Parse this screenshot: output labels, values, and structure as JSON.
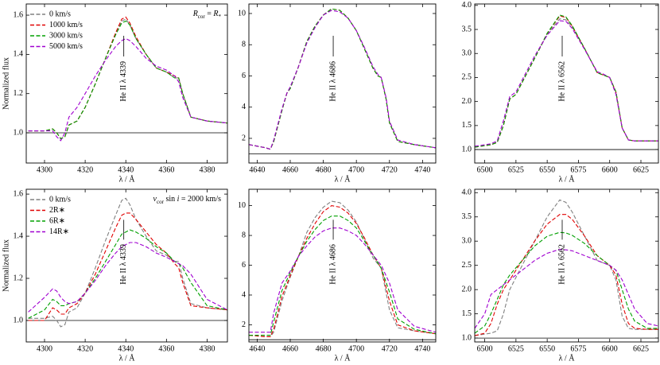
{
  "chart_data": [
    {
      "type": "line",
      "xlabel": "λ / Å",
      "ylabel": "Normalized flux",
      "xlim": [
        4291,
        4390
      ],
      "ylim": [
        0.846,
        1.657
      ],
      "xticks": [
        4300,
        4320,
        4340,
        4360,
        4380
      ],
      "yticks": [
        {
          "value": 1,
          "label": "1.0"
        },
        1.2,
        1.4,
        1.6
      ],
      "hline": 1,
      "legend": "upper left",
      "annotation": {
        "parts": [
          {
            "text": "R",
            "italic": true
          },
          {
            "text": "cor",
            "sub": true
          },
          {
            "text": " = "
          },
          {
            "text": "R",
            "italic": true
          },
          {
            "text": "*",
            "sub": true
          }
        ]
      },
      "line_label": {
        "text": "He II λ 4339",
        "x": 4339
      },
      "x": [
        4292,
        4300,
        4304,
        4306,
        4308,
        4310,
        4312,
        4316,
        4320,
        4325,
        4330,
        4335,
        4338,
        4340,
        4342,
        4345,
        4350,
        4355,
        4360,
        4364,
        4366,
        4368,
        4372,
        4380,
        4390
      ],
      "series": [
        {
          "name": "0 km/s",
          "color": "#808080",
          "values": [
            1.01,
            1.01,
            1.02,
            1.0,
            0.97,
            0.98,
            1.04,
            1.06,
            1.13,
            1.25,
            1.38,
            1.5,
            1.57,
            1.58,
            1.55,
            1.48,
            1.4,
            1.33,
            1.31,
            1.28,
            1.28,
            1.2,
            1.08,
            1.06,
            1.05
          ]
        },
        {
          "name": "1000 km/s",
          "color": "#e00000",
          "values": [
            1.01,
            1.01,
            1.02,
            1.0,
            0.97,
            0.98,
            1.04,
            1.06,
            1.13,
            1.25,
            1.38,
            1.51,
            1.58,
            1.59,
            1.56,
            1.49,
            1.4,
            1.33,
            1.31,
            1.29,
            1.28,
            1.2,
            1.08,
            1.06,
            1.05
          ]
        },
        {
          "name": "3000 km/s",
          "color": "#00a000",
          "values": [
            1.01,
            1.01,
            1.02,
            1.0,
            0.97,
            0.98,
            1.04,
            1.06,
            1.13,
            1.25,
            1.38,
            1.5,
            1.56,
            1.57,
            1.55,
            1.48,
            1.4,
            1.33,
            1.31,
            1.28,
            1.28,
            1.2,
            1.08,
            1.06,
            1.05
          ]
        },
        {
          "name": "5000 km/s",
          "color": "#a000d0",
          "values": [
            1.01,
            1.01,
            1.01,
            0.98,
            0.96,
            1.0,
            1.08,
            1.13,
            1.2,
            1.29,
            1.37,
            1.44,
            1.47,
            1.48,
            1.47,
            1.44,
            1.38,
            1.34,
            1.32,
            1.29,
            1.26,
            1.18,
            1.08,
            1.06,
            1.05
          ]
        }
      ]
    },
    {
      "type": "line",
      "xlabel": "λ / Å",
      "xlim": [
        4635,
        4748
      ],
      "ylim": [
        0.42,
        10.61
      ],
      "xticks": [
        4640,
        4660,
        4680,
        4700,
        4720,
        4740
      ],
      "yticks": [
        2,
        4,
        6,
        8,
        10
      ],
      "hline": 1,
      "line_label": {
        "text": "He II λ 4686",
        "x": 4686
      },
      "x": [
        4635,
        4645,
        4648,
        4650,
        4655,
        4658,
        4660,
        4665,
        4670,
        4675,
        4680,
        4685,
        4690,
        4695,
        4700,
        4705,
        4710,
        4713,
        4715,
        4718,
        4720,
        4725,
        4735,
        4748
      ],
      "series": [
        {
          "name": "0 km/s",
          "color": "#808080",
          "values": [
            1.6,
            1.4,
            1.3,
            1.8,
            3.8,
            4.9,
            5.2,
            6.6,
            8.2,
            9.2,
            9.9,
            10.3,
            10.2,
            9.7,
            8.9,
            7.7,
            6.5,
            6.0,
            5.9,
            4.5,
            3.0,
            1.8,
            1.6,
            1.4
          ]
        },
        {
          "name": "1000 km/s",
          "color": "#e00000",
          "values": [
            1.6,
            1.4,
            1.3,
            1.8,
            3.8,
            4.9,
            5.2,
            6.6,
            8.2,
            9.2,
            9.9,
            10.3,
            10.2,
            9.7,
            8.9,
            7.7,
            6.5,
            6.0,
            5.9,
            4.5,
            3.0,
            1.8,
            1.6,
            1.4
          ]
        },
        {
          "name": "3000 km/s",
          "color": "#00a000",
          "values": [
            1.6,
            1.4,
            1.3,
            1.8,
            3.8,
            4.9,
            5.2,
            6.6,
            8.2,
            9.2,
            9.9,
            10.3,
            10.2,
            9.7,
            8.9,
            7.7,
            6.5,
            6.0,
            5.9,
            4.5,
            3.0,
            1.8,
            1.6,
            1.4
          ]
        },
        {
          "name": "5000 km/s",
          "color": "#a000d0",
          "values": [
            1.6,
            1.4,
            1.3,
            1.9,
            3.9,
            4.9,
            5.3,
            6.6,
            8.1,
            9.1,
            9.9,
            10.2,
            10.1,
            9.7,
            8.9,
            7.8,
            6.6,
            6.1,
            5.9,
            4.6,
            3.1,
            1.9,
            1.6,
            1.4
          ]
        }
      ]
    },
    {
      "type": "line",
      "xlabel": "λ / Å",
      "xlim": [
        6492,
        6639
      ],
      "ylim": [
        0.72,
        4.03
      ],
      "xticks": [
        6500,
        6525,
        6550,
        6575,
        6600,
        6625
      ],
      "yticks": [
        {
          "value": 1,
          "label": "1.0"
        },
        1.5,
        {
          "value": 2,
          "label": "2.0"
        },
        2.5,
        {
          "value": 3,
          "label": "3.0"
        },
        3.5,
        {
          "value": 4,
          "label": "4.0"
        }
      ],
      "hline": 1,
      "line_label": {
        "text": "He II λ 6562",
        "x": 6562
      },
      "x": [
        6492,
        6500,
        6505,
        6510,
        6515,
        6520,
        6525,
        6530,
        6540,
        6550,
        6560,
        6565,
        6570,
        6580,
        6590,
        6595,
        6600,
        6605,
        6610,
        6615,
        6620,
        6630,
        6639
      ],
      "series": [
        {
          "name": "0 km/s",
          "color": "#808080",
          "values": [
            1.05,
            1.08,
            1.1,
            1.15,
            1.5,
            2.05,
            2.15,
            2.4,
            2.9,
            3.4,
            3.72,
            3.7,
            3.55,
            3.1,
            2.6,
            2.55,
            2.5,
            2.2,
            1.45,
            1.2,
            1.18,
            1.18,
            1.18
          ]
        },
        {
          "name": "1000 km/s",
          "color": "#e00000",
          "values": [
            1.05,
            1.08,
            1.1,
            1.15,
            1.5,
            2.05,
            2.15,
            2.4,
            2.9,
            3.42,
            3.78,
            3.75,
            3.57,
            3.1,
            2.6,
            2.55,
            2.5,
            2.2,
            1.45,
            1.2,
            1.18,
            1.18,
            1.18
          ]
        },
        {
          "name": "3000 km/s",
          "color": "#00a000",
          "values": [
            1.05,
            1.08,
            1.1,
            1.15,
            1.5,
            2.05,
            2.15,
            2.4,
            2.9,
            3.42,
            3.8,
            3.76,
            3.58,
            3.1,
            2.6,
            2.55,
            2.5,
            2.2,
            1.45,
            1.2,
            1.18,
            1.18,
            1.18
          ]
        },
        {
          "name": "5000 km/s",
          "color": "#a000d0",
          "values": [
            1.07,
            1.1,
            1.12,
            1.18,
            1.6,
            2.1,
            2.2,
            2.45,
            2.95,
            3.38,
            3.68,
            3.67,
            3.52,
            3.08,
            2.62,
            2.57,
            2.5,
            2.15,
            1.45,
            1.2,
            1.18,
            1.18,
            1.18
          ]
        }
      ]
    },
    {
      "type": "line",
      "xlabel": "λ / Å",
      "ylabel": "Normalized flux",
      "xlim": [
        4291,
        4390
      ],
      "ylim": [
        0.898,
        1.623
      ],
      "xticks": [
        4300,
        4320,
        4340,
        4360,
        4380
      ],
      "yticks": [
        {
          "value": 1,
          "label": "1.0"
        },
        1.2,
        1.4,
        1.6
      ],
      "hline": 1,
      "legend": "upper left",
      "annotation": {
        "parts": [
          {
            "text": "v",
            "italic": true
          },
          {
            "text": "cor",
            "sub": true
          },
          {
            "text": " sin "
          },
          {
            "text": "i",
            "italic": true
          },
          {
            "text": " = 2000 km/s"
          }
        ]
      },
      "line_label": {
        "text": "He II λ 4339",
        "x": 4339
      },
      "x": [
        4292,
        4300,
        4304,
        4306,
        4308,
        4310,
        4312,
        4316,
        4320,
        4325,
        4330,
        4335,
        4338,
        4340,
        4342,
        4345,
        4350,
        4355,
        4360,
        4364,
        4366,
        4368,
        4372,
        4380,
        4390
      ],
      "series": [
        {
          "name": "0 km/s",
          "color": "#808080",
          "values": [
            1.01,
            1.01,
            1.02,
            1.0,
            0.97,
            0.98,
            1.04,
            1.06,
            1.13,
            1.25,
            1.38,
            1.5,
            1.57,
            1.58,
            1.55,
            1.48,
            1.4,
            1.33,
            1.31,
            1.28,
            1.28,
            1.2,
            1.08,
            1.06,
            1.05
          ]
        },
        {
          "name": "2R∗",
          "color": "#e00000",
          "values": [
            1.0,
            1.0,
            1.06,
            1.05,
            1.03,
            1.03,
            1.06,
            1.08,
            1.13,
            1.22,
            1.33,
            1.44,
            1.5,
            1.51,
            1.51,
            1.48,
            1.42,
            1.36,
            1.32,
            1.27,
            1.25,
            1.18,
            1.07,
            1.06,
            1.05
          ]
        },
        {
          "name": "6R∗",
          "color": "#00a000",
          "values": [
            1.01,
            1.05,
            1.1,
            1.09,
            1.07,
            1.07,
            1.08,
            1.09,
            1.13,
            1.2,
            1.28,
            1.36,
            1.41,
            1.42,
            1.43,
            1.42,
            1.39,
            1.35,
            1.32,
            1.28,
            1.27,
            1.25,
            1.18,
            1.07,
            1.05
          ]
        },
        {
          "name": "14R∗",
          "color": "#a000d0",
          "values": [
            1.04,
            1.11,
            1.15,
            1.14,
            1.11,
            1.09,
            1.08,
            1.09,
            1.13,
            1.19,
            1.26,
            1.32,
            1.35,
            1.36,
            1.37,
            1.37,
            1.35,
            1.32,
            1.3,
            1.28,
            1.27,
            1.26,
            1.22,
            1.1,
            1.05
          ]
        }
      ]
    },
    {
      "type": "line",
      "xlabel": "λ / Å",
      "xlim": [
        4635,
        4748
      ],
      "ylim": [
        0.85,
        11.1
      ],
      "xticks": [
        4640,
        4660,
        4680,
        4700,
        4720,
        4740
      ],
      "yticks": [
        2,
        4,
        6,
        8,
        10
      ],
      "hline": 1,
      "line_label": {
        "text": "He II λ 4686",
        "x": 4686
      },
      "x": [
        4635,
        4645,
        4648,
        4650,
        4655,
        4660,
        4665,
        4670,
        4675,
        4680,
        4685,
        4690,
        4695,
        4700,
        4705,
        4710,
        4715,
        4720,
        4725,
        4735,
        4748
      ],
      "series": [
        {
          "name": "0 km/s",
          "color": "#808080",
          "values": [
            1.3,
            1.2,
            1.2,
            1.5,
            3.6,
            5.2,
            6.6,
            8.2,
            9.2,
            9.9,
            10.3,
            10.2,
            9.7,
            8.9,
            7.7,
            6.5,
            5.8,
            3.0,
            1.8,
            1.6,
            1.4
          ]
        },
        {
          "name": "2R∗",
          "color": "#e00000",
          "values": [
            1.3,
            1.2,
            1.2,
            1.7,
            3.9,
            5.3,
            6.6,
            7.8,
            8.8,
            9.6,
            10.0,
            9.9,
            9.5,
            8.8,
            7.8,
            6.7,
            5.8,
            3.6,
            2.0,
            1.6,
            1.4
          ]
        },
        {
          "name": "6R∗",
          "color": "#00a000",
          "values": [
            1.3,
            1.3,
            1.3,
            2.2,
            4.3,
            5.5,
            6.6,
            7.6,
            8.4,
            9.0,
            9.3,
            9.3,
            9.0,
            8.5,
            7.6,
            6.7,
            5.8,
            4.2,
            2.4,
            1.7,
            1.4
          ]
        },
        {
          "name": "14R∗",
          "color": "#a000d0",
          "values": [
            1.5,
            1.5,
            1.5,
            2.8,
            4.8,
            5.6,
            6.6,
            7.3,
            7.9,
            8.3,
            8.5,
            8.5,
            8.3,
            8.0,
            7.4,
            6.7,
            6.0,
            4.8,
            3.0,
            1.9,
            1.5
          ]
        }
      ]
    },
    {
      "type": "line",
      "xlabel": "λ / Å",
      "xlim": [
        6492,
        6639
      ],
      "ylim": [
        0.92,
        4.07
      ],
      "xticks": [
        6500,
        6525,
        6550,
        6575,
        6600,
        6625
      ],
      "yticks": [
        {
          "value": 1,
          "label": "1.0"
        },
        1.5,
        {
          "value": 2,
          "label": "2.0"
        },
        2.5,
        {
          "value": 3,
          "label": "3.0"
        },
        3.5,
        {
          "value": 4,
          "label": "4.0"
        }
      ],
      "hline": 1,
      "line_label": {
        "text": "He II λ 6562",
        "x": 6562
      },
      "x": [
        6492,
        6500,
        6505,
        6510,
        6515,
        6520,
        6530,
        6540,
        6550,
        6560,
        6565,
        6570,
        6580,
        6590,
        6600,
        6605,
        6610,
        6615,
        6620,
        6630,
        6639
      ],
      "series": [
        {
          "name": "0 km/s",
          "color": "#808080",
          "values": [
            1.05,
            1.08,
            1.1,
            1.15,
            1.5,
            2.0,
            2.5,
            3.0,
            3.5,
            3.85,
            3.8,
            3.6,
            3.1,
            2.6,
            2.5,
            2.2,
            1.45,
            1.2,
            1.18,
            1.18,
            1.18
          ]
        },
        {
          "name": "2R∗",
          "color": "#e00000",
          "values": [
            1.05,
            1.1,
            1.3,
            1.7,
            2.0,
            2.2,
            2.6,
            3.0,
            3.35,
            3.55,
            3.55,
            3.45,
            3.1,
            2.7,
            2.5,
            2.3,
            1.7,
            1.3,
            1.2,
            1.18,
            1.18
          ]
        },
        {
          "name": "6R∗",
          "color": "#00a000",
          "values": [
            1.1,
            1.25,
            1.5,
            1.8,
            2.1,
            2.3,
            2.6,
            2.9,
            3.1,
            3.18,
            3.17,
            3.12,
            2.95,
            2.7,
            2.5,
            2.4,
            2.0,
            1.6,
            1.35,
            1.2,
            1.2
          ]
        },
        {
          "name": "14R∗",
          "color": "#a000d0",
          "values": [
            1.2,
            1.5,
            1.9,
            2.0,
            2.1,
            2.2,
            2.4,
            2.6,
            2.75,
            2.83,
            2.82,
            2.8,
            2.7,
            2.6,
            2.5,
            2.4,
            2.2,
            1.9,
            1.6,
            1.3,
            1.25
          ]
        }
      ]
    }
  ]
}
